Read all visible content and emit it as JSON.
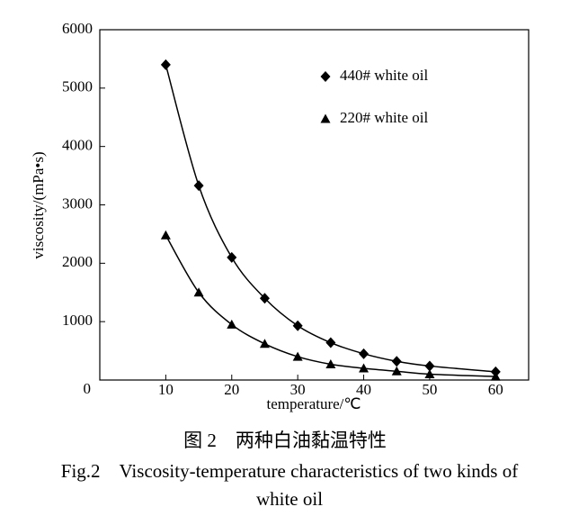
{
  "chart_data": {
    "type": "line",
    "xlabel": "temperature/℃",
    "ylabel": "viscosity/(mPa•s)",
    "caption_cn": "图 2　两种白油黏温特性",
    "caption_en": "Fig.2　Viscosity-temperature characteristics of two kinds of white oil",
    "x": [
      10,
      15,
      20,
      25,
      30,
      35,
      40,
      45,
      50,
      60
    ],
    "series": [
      {
        "name": "440# white oil",
        "color": "#000000",
        "marker": "diamond",
        "values": [
          5400,
          3330,
          2100,
          1400,
          930,
          640,
          450,
          320,
          240,
          140
        ]
      },
      {
        "name": "220# white oil",
        "color": "#000000",
        "marker": "triangle",
        "values": [
          2480,
          1500,
          950,
          620,
          400,
          270,
          200,
          150,
          100,
          60
        ]
      }
    ],
    "xlim": [
      0,
      65
    ],
    "xticks": [
      10,
      20,
      30,
      40,
      50,
      60
    ],
    "ylim": [
      0,
      6000
    ],
    "yticks": [
      0,
      1000,
      2000,
      3000,
      4000,
      5000,
      6000
    ],
    "legend": "upper-right"
  }
}
